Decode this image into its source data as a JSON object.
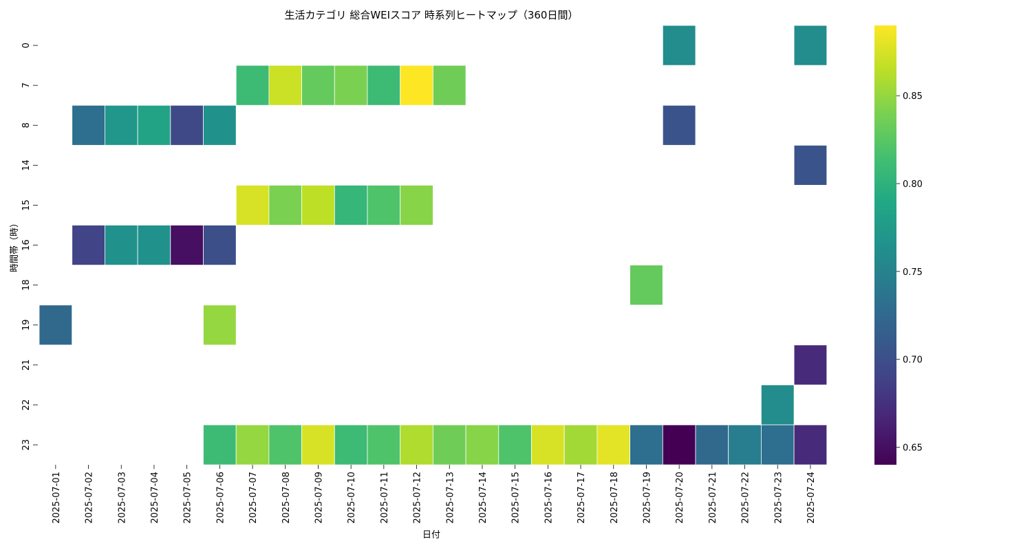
{
  "chart_data": {
    "type": "heatmap",
    "title": "生活カテゴリ 総合WEIスコア 時系列ヒートマップ（360日間）",
    "xlabel": "日付",
    "ylabel": "時間帯（時）",
    "x": [
      "2025-07-01",
      "2025-07-02",
      "2025-07-03",
      "2025-07-04",
      "2025-07-05",
      "2025-07-06",
      "2025-07-07",
      "2025-07-08",
      "2025-07-09",
      "2025-07-10",
      "2025-07-11",
      "2025-07-12",
      "2025-07-13",
      "2025-07-14",
      "2025-07-15",
      "2025-07-16",
      "2025-07-17",
      "2025-07-18",
      "2025-07-19",
      "2025-07-20",
      "2025-07-21",
      "2025-07-22",
      "2025-07-23",
      "2025-07-24"
    ],
    "y": [
      "0",
      "7",
      "8",
      "14",
      "15",
      "16",
      "18",
      "19",
      "21",
      "22",
      "23"
    ],
    "values": [
      [
        null,
        null,
        null,
        null,
        null,
        null,
        null,
        null,
        null,
        null,
        null,
        null,
        null,
        null,
        null,
        null,
        null,
        null,
        null,
        0.76,
        null,
        null,
        null,
        0.76
      ],
      [
        null,
        null,
        null,
        null,
        null,
        null,
        0.81,
        0.87,
        0.83,
        0.84,
        0.81,
        0.89,
        0.835,
        null,
        null,
        null,
        null,
        null,
        null,
        null,
        null,
        null,
        null,
        null
      ],
      [
        null,
        0.73,
        0.77,
        0.785,
        0.695,
        0.765,
        null,
        null,
        null,
        null,
        null,
        null,
        null,
        null,
        null,
        null,
        null,
        null,
        null,
        0.705,
        null,
        null,
        null,
        null
      ],
      [
        null,
        null,
        null,
        null,
        null,
        null,
        null,
        null,
        null,
        null,
        null,
        null,
        null,
        null,
        null,
        null,
        null,
        null,
        null,
        null,
        null,
        null,
        null,
        0.705
      ],
      [
        null,
        null,
        null,
        null,
        null,
        null,
        0.875,
        0.84,
        0.865,
        0.805,
        0.82,
        0.845,
        null,
        null,
        null,
        null,
        null,
        null,
        null,
        null,
        null,
        null,
        null,
        null
      ],
      [
        null,
        0.69,
        0.765,
        0.765,
        0.65,
        0.7,
        null,
        null,
        null,
        null,
        null,
        null,
        null,
        null,
        null,
        null,
        null,
        null,
        null,
        null,
        null,
        null,
        null,
        null
      ],
      [
        null,
        null,
        null,
        null,
        null,
        null,
        null,
        null,
        null,
        null,
        null,
        null,
        null,
        null,
        null,
        null,
        null,
        null,
        0.83,
        null,
        null,
        null,
        null,
        null
      ],
      [
        0.725,
        null,
        null,
        null,
        null,
        0.85,
        null,
        null,
        null,
        null,
        null,
        null,
        null,
        null,
        null,
        null,
        null,
        null,
        null,
        null,
        null,
        null,
        null,
        null
      ],
      [
        null,
        null,
        null,
        null,
        null,
        null,
        null,
        null,
        null,
        null,
        null,
        null,
        null,
        null,
        null,
        null,
        null,
        null,
        null,
        null,
        null,
        null,
        null,
        0.67
      ],
      [
        null,
        null,
        null,
        null,
        null,
        null,
        null,
        null,
        null,
        null,
        null,
        null,
        null,
        null,
        null,
        null,
        null,
        null,
        null,
        null,
        null,
        null,
        0.76,
        null
      ],
      [
        null,
        null,
        null,
        null,
        null,
        0.81,
        0.85,
        0.82,
        0.875,
        0.81,
        0.82,
        0.86,
        0.835,
        0.845,
        0.82,
        0.875,
        0.855,
        0.88,
        0.73,
        0.64,
        0.725,
        0.745,
        0.73,
        0.67
      ]
    ],
    "colorscale": "viridis",
    "zlim": [
      0.64,
      0.89
    ],
    "colorbar_ticks": [
      "0.65",
      "0.70",
      "0.75",
      "0.80",
      "0.85"
    ],
    "grid": false,
    "legend": "colorbar-right"
  }
}
